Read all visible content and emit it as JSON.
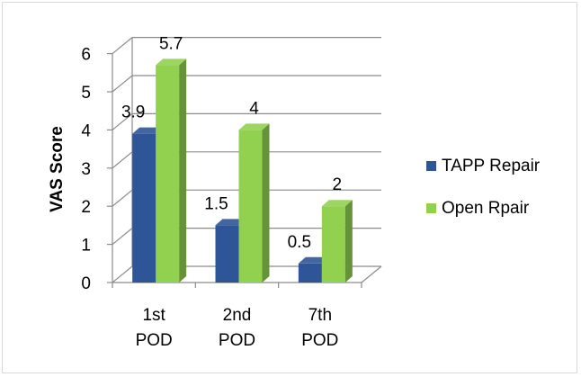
{
  "chart_data": {
    "type": "bar",
    "style": "3d-clustered-column",
    "categories": [
      [
        "1st",
        "POD"
      ],
      [
        "2nd",
        "POD"
      ],
      [
        "7th",
        "POD"
      ]
    ],
    "series": [
      {
        "name": "TAPP Repair",
        "values": [
          3.9,
          1.5,
          0.5
        ],
        "color": "#2e5597"
      },
      {
        "name": "Open Rpair",
        "values": [
          5.7,
          4,
          2
        ],
        "color": "#92d050"
      }
    ],
    "data_labels": [
      [
        "3.9",
        "1.5",
        "0.5"
      ],
      [
        "5.7",
        "4",
        "2"
      ]
    ],
    "title": "",
    "xlabel": "",
    "ylabel": "VAS Score",
    "ylim": [
      0,
      6
    ],
    "yticks": [
      0,
      1,
      2,
      3,
      4,
      5,
      6
    ],
    "grid": true,
    "legend_position": "right"
  }
}
